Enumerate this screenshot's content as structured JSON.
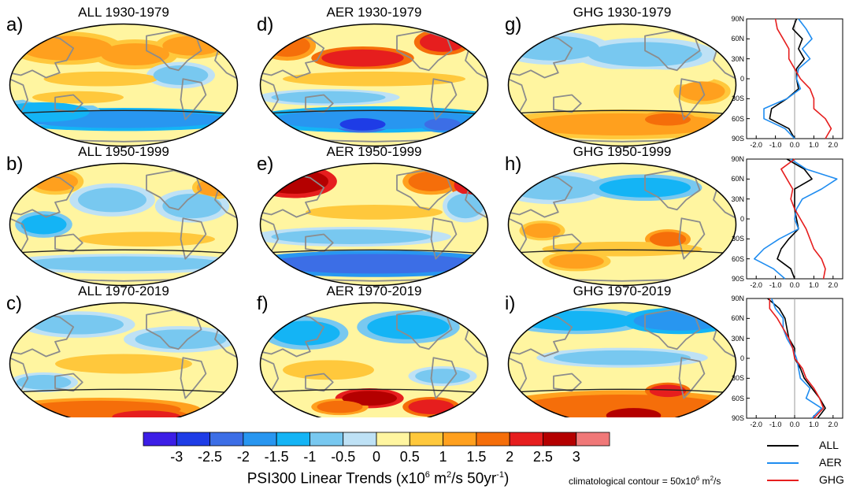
{
  "chart_data": {
    "type": "figure",
    "panels": [
      {
        "letter": "a)",
        "title": "ALL 1930-1979",
        "forcing": "ALL",
        "period": "1930-1979"
      },
      {
        "letter": "b)",
        "title": "ALL 1950-1999",
        "forcing": "ALL",
        "period": "1950-1999"
      },
      {
        "letter": "c)",
        "title": "ALL 1970-2019",
        "forcing": "ALL",
        "period": "1970-2019"
      },
      {
        "letter": "d)",
        "title": "AER 1930-1979",
        "forcing": "AER",
        "period": "1930-1979"
      },
      {
        "letter": "e)",
        "title": "AER 1950-1999",
        "forcing": "AER",
        "period": "1950-1999"
      },
      {
        "letter": "f)",
        "title": "AER 1970-2019",
        "forcing": "AER",
        "period": "1970-2019"
      },
      {
        "letter": "g)",
        "title": "GHG 1930-1979",
        "forcing": "GHG",
        "period": "1930-1979"
      },
      {
        "letter": "h)",
        "title": "GHG 1950-1999",
        "forcing": "GHG",
        "period": "1950-1999"
      },
      {
        "letter": "i)",
        "title": "GHG 1970-2019",
        "forcing": "GHG",
        "period": "1970-2019"
      }
    ],
    "colorbar": {
      "levels": [
        "-3",
        "-2.5",
        "-2",
        "-1.5",
        "-1",
        "-0.5",
        "0",
        "0.5",
        "1",
        "1.5",
        "2",
        "2.5",
        "3"
      ],
      "colors": [
        "#3c1ee6",
        "#1e3ce6",
        "#3c6ee6",
        "#2896f0",
        "#14b4f5",
        "#78c8f0",
        "#bee1f5",
        "#fff5a0",
        "#ffc83c",
        "#ffa01e",
        "#f56e0a",
        "#e61e1e",
        "#b40000",
        "#f07878"
      ],
      "title_main": "PSI300 Linear Trends (x10",
      "title_exp1": "6",
      "title_mid": " m",
      "title_exp2": "2",
      "title_mid2": "/s 50yr",
      "title_exp3": "-1",
      "title_end": ")"
    },
    "contour_note": {
      "main": "climatological contour = 50x10",
      "exp1": "6",
      "mid": " m",
      "exp2": "2",
      "end": "/s"
    },
    "zonal_profiles": {
      "y_ticks": [
        "90N",
        "60N",
        "30N",
        "0",
        "30S",
        "60S",
        "90S"
      ],
      "x_ticks": [
        "-2.0",
        "-1.0",
        "0.0",
        "1.0",
        "2.0"
      ],
      "xlim": [
        -2.5,
        2.5
      ],
      "ylim": [
        -90,
        90
      ],
      "latitudes": [
        90,
        75,
        60,
        45,
        30,
        15,
        0,
        -15,
        -30,
        -45,
        -60,
        -75,
        -90
      ],
      "profiles": [
        {
          "period": "1930-1979",
          "series": [
            {
              "name": "ALL",
              "values": [
                0.1,
                -0.1,
                0.4,
                0.2,
                0.5,
                0.1,
                0.1,
                0.2,
                -0.4,
                -1.2,
                -1.3,
                -0.3,
                0.0
              ]
            },
            {
              "name": "AER",
              "values": [
                0.2,
                0.6,
                0.9,
                0.4,
                0.8,
                0.2,
                0.1,
                0.3,
                -0.4,
                -1.6,
                -1.6,
                -0.5,
                0.0
              ]
            },
            {
              "name": "GHG",
              "values": [
                -1.0,
                -0.9,
                -0.6,
                -0.3,
                -0.3,
                0.0,
                0.3,
                0.8,
                1.0,
                1.0,
                1.6,
                1.9,
                1.6
              ]
            }
          ]
        },
        {
          "period": "1950-1999",
          "series": [
            {
              "name": "ALL",
              "values": [
                -0.4,
                0.5,
                0.9,
                0.0,
                0.0,
                0.0,
                0.1,
                0.2,
                -0.3,
                -0.7,
                -0.9,
                -0.2,
                0.0
              ]
            },
            {
              "name": "AER",
              "values": [
                -0.2,
                0.6,
                2.2,
                1.4,
                0.4,
                0.1,
                0.0,
                0.2,
                -0.8,
                -1.6,
                -2.1,
                -1.1,
                -0.5
              ]
            },
            {
              "name": "GHG",
              "values": [
                0.0,
                -0.7,
                -0.4,
                -0.1,
                -0.2,
                0.0,
                0.3,
                0.6,
                0.8,
                1.0,
                1.4,
                1.6,
                1.5
              ]
            }
          ]
        },
        {
          "period": "1970-2019",
          "series": [
            {
              "name": "ALL",
              "values": [
                -1.4,
                -0.8,
                -0.5,
                -0.4,
                -0.3,
                0.0,
                0.0,
                0.3,
                0.5,
                0.9,
                1.3,
                1.6,
                1.2
              ]
            },
            {
              "name": "AER",
              "values": [
                -1.2,
                -1.0,
                -0.6,
                -0.6,
                -0.4,
                -0.1,
                0.1,
                0.2,
                0.3,
                0.8,
                0.6,
                1.4,
                0.9
              ]
            },
            {
              "name": "GHG",
              "values": [
                -1.3,
                -1.3,
                -0.9,
                -0.6,
                -0.3,
                -0.1,
                0.0,
                0.4,
                0.6,
                1.0,
                1.3,
                1.5,
                1.0
              ]
            }
          ]
        }
      ]
    },
    "legend": [
      {
        "name": "ALL",
        "color": "#000000"
      },
      {
        "name": "AER",
        "color": "#1e8cf0"
      },
      {
        "name": "GHG",
        "color": "#e61e1e"
      }
    ]
  }
}
